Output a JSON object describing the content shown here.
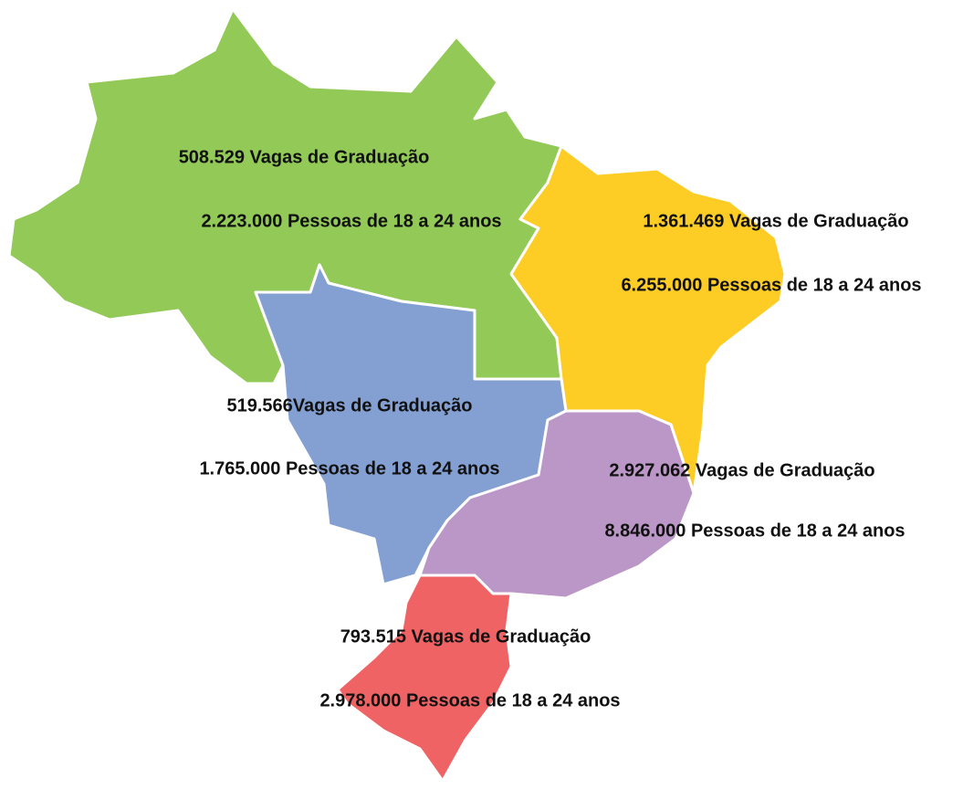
{
  "regions": [
    {
      "vagas": "508.529 Vagas de Graduação",
      "pessoas": "2.223.000 Pessoas de 18 a 24 anos"
    },
    {
      "vagas": "1.361.469 Vagas de Graduação",
      "pessoas": "6.255.000 Pessoas de 18 a 24 anos"
    },
    {
      "vagas": "519.566Vagas de Graduação",
      "pessoas": "1.765.000 Pessoas de 18 a 24 anos"
    },
    {
      "vagas": "2.927.062 Vagas de Graduação",
      "pessoas": "8.846.000 Pessoas de 18 a 24 anos"
    },
    {
      "vagas": "793.515 Vagas de Graduação",
      "pessoas": "2.978.000 Pessoas de 18 a 24 anos"
    }
  ]
}
